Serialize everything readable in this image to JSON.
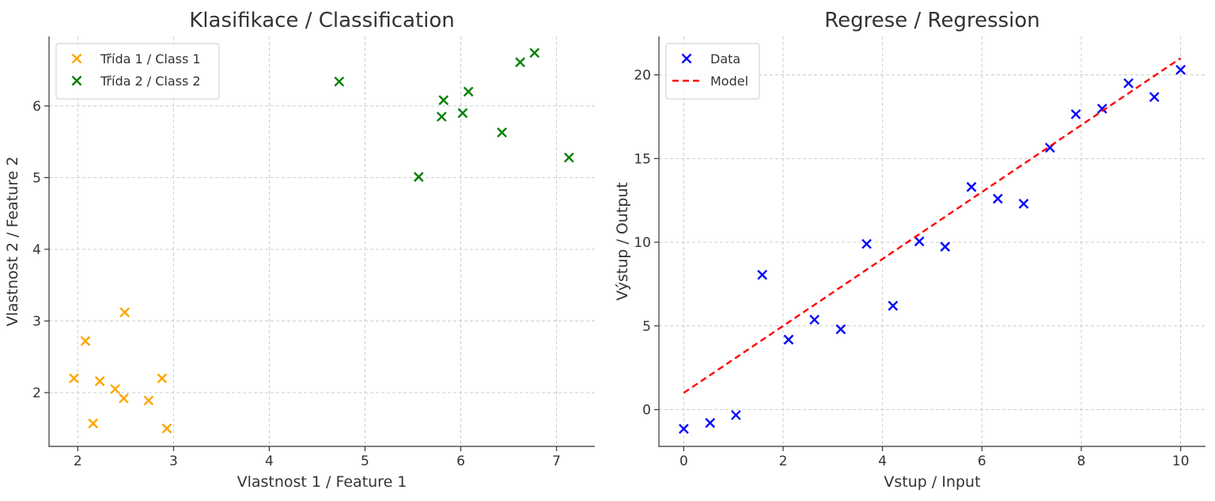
{
  "chart_data": [
    {
      "type": "scatter",
      "title": "Klasifikace / Classification",
      "xlabel": "Vlastnost 1 / Feature 1",
      "ylabel": "Vlastnost 2 / Feature 2",
      "xlim": [
        1.7,
        7.4
      ],
      "ylim": [
        1.25,
        6.97
      ],
      "xticks": [
        2,
        3,
        4,
        5,
        6,
        7
      ],
      "yticks": [
        2,
        3,
        4,
        5,
        6
      ],
      "grid": true,
      "legend_position": "top-left",
      "series": [
        {
          "name": "Třída 1 / Class 1",
          "marker": "x",
          "color": "#FFA500",
          "points": [
            [
              1.96,
              2.2
            ],
            [
              2.08,
              2.72
            ],
            [
              2.16,
              1.57
            ],
            [
              2.23,
              2.16
            ],
            [
              2.39,
              2.05
            ],
            [
              2.48,
              1.92
            ],
            [
              2.49,
              3.12
            ],
            [
              2.74,
              1.89
            ],
            [
              2.88,
              2.2
            ],
            [
              2.93,
              1.5
            ]
          ]
        },
        {
          "name": "Třída 2 / Class 2",
          "marker": "x",
          "color": "#008000",
          "points": [
            [
              4.73,
              6.34
            ],
            [
              5.56,
              5.01
            ],
            [
              5.8,
              5.85
            ],
            [
              5.82,
              6.08
            ],
            [
              6.02,
              5.9
            ],
            [
              6.08,
              6.2
            ],
            [
              6.43,
              5.63
            ],
            [
              6.62,
              6.61
            ],
            [
              6.77,
              6.74
            ],
            [
              7.13,
              5.28
            ]
          ]
        }
      ]
    },
    {
      "type": "scatter",
      "title": "Regrese / Regression",
      "xlabel": "Vstup / Input",
      "ylabel": "Výstup / Output",
      "xlim": [
        -0.5,
        10.5
      ],
      "ylim": [
        -2.2,
        22.3
      ],
      "xticks": [
        0,
        2,
        4,
        6,
        8,
        10
      ],
      "yticks": [
        0,
        5,
        10,
        15,
        20
      ],
      "grid": true,
      "legend_position": "top-left",
      "series": [
        {
          "name": "Data",
          "marker": "x",
          "color": "#0000FF",
          "points": [
            [
              0,
              -1.15
            ],
            [
              0.53,
              -0.8
            ],
            [
              1.05,
              -0.33
            ],
            [
              1.58,
              8.05
            ],
            [
              2.11,
              4.18
            ],
            [
              2.63,
              5.37
            ],
            [
              3.16,
              4.8
            ],
            [
              3.68,
              9.9
            ],
            [
              4.21,
              6.2
            ],
            [
              4.74,
              10.05
            ],
            [
              5.26,
              9.73
            ],
            [
              5.79,
              13.3
            ],
            [
              6.32,
              12.6
            ],
            [
              6.84,
              12.3
            ],
            [
              7.37,
              15.65
            ],
            [
              7.89,
              17.65
            ],
            [
              8.42,
              17.98
            ],
            [
              8.95,
              19.5
            ],
            [
              9.47,
              18.68
            ],
            [
              10,
              20.3
            ]
          ]
        },
        {
          "name": "Model",
          "type": "line",
          "style": "dashed",
          "color": "#FF0000",
          "points": [
            [
              0,
              1.0
            ],
            [
              10,
              21.0
            ]
          ]
        }
      ]
    }
  ]
}
